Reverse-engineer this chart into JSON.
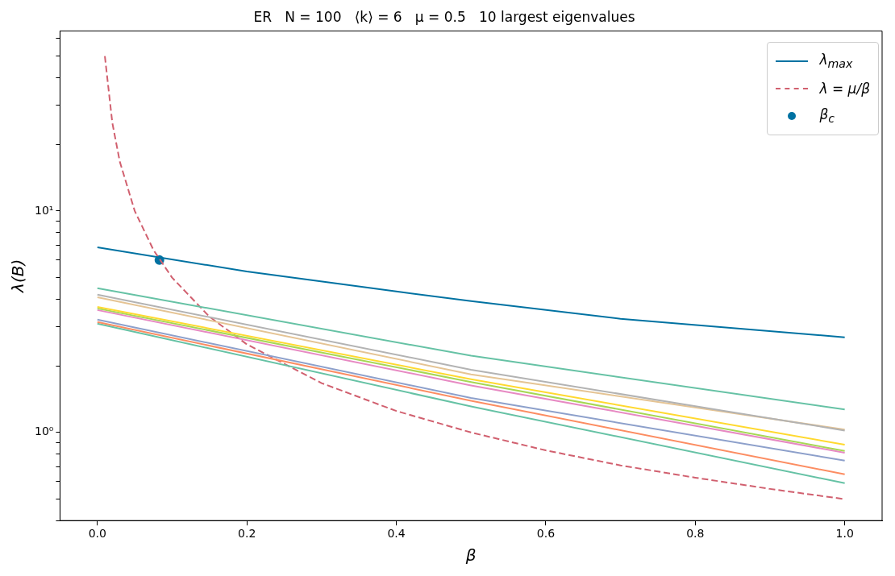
{
  "chart_data": {
    "type": "line",
    "title": "ER   N = 100   ⟨k⟩ = 6   μ = 0.5   10 largest eigenvalues",
    "xlabel": "β",
    "ylabel": "λ(B)",
    "log": "y",
    "grid": false,
    "legend": "top right",
    "xlim": [
      -0.05,
      1.05
    ],
    "xticks": [
      {
        "value": 0,
        "label": "0.0"
      },
      {
        "value": 0.2,
        "label": "0.2"
      },
      {
        "value": 0.4,
        "label": "0.4"
      },
      {
        "value": 0.6,
        "label": "0.6"
      },
      {
        "value": 0.8,
        "label": "0.8"
      },
      {
        "value": 1,
        "label": "1.0"
      }
    ],
    "ylim": [
      0.4,
      65
    ],
    "yticks": [
      {
        "value": 0.4,
        "label": null
      },
      {
        "value": 0.5,
        "label": null
      },
      {
        "value": 0.6,
        "label": null
      },
      {
        "value": 0.7,
        "label": null
      },
      {
        "value": 0.8,
        "label": null
      },
      {
        "value": 0.9,
        "label": null
      },
      {
        "value": 1,
        "label": "10⁰"
      },
      {
        "value": 2,
        "label": null
      },
      {
        "value": 3,
        "label": null
      },
      {
        "value": 4,
        "label": null
      },
      {
        "value": 5,
        "label": null
      },
      {
        "value": 6,
        "label": null
      },
      {
        "value": 7,
        "label": null
      },
      {
        "value": 8,
        "label": null
      },
      {
        "value": 9,
        "label": null
      },
      {
        "value": 10,
        "label": "10¹"
      },
      {
        "value": 20,
        "label": null
      },
      {
        "value": 30,
        "label": null
      },
      {
        "value": 40,
        "label": null
      },
      {
        "value": 50,
        "label": null
      },
      {
        "value": 60,
        "label": null
      }
    ],
    "series": [
      {
        "color": "#66c2a5",
        "x": [
          0,
          0.5,
          1
        ],
        "values": [
          4.48,
          2.22,
          1.27
        ]
      },
      {
        "color": "#b3b3b3",
        "x": [
          0,
          0.5,
          1
        ],
        "values": [
          4.19,
          1.92,
          1.02
        ]
      },
      {
        "color": "#e5c494",
        "x": [
          0,
          0.5,
          1
        ],
        "values": [
          4.08,
          1.83,
          1.03
        ]
      },
      {
        "color": "#ffd92f",
        "x": [
          0,
          0.5,
          1
        ],
        "values": [
          3.69,
          1.74,
          0.88
        ]
      },
      {
        "color": "#a6d854",
        "x": [
          0,
          0.5,
          1
        ],
        "values": [
          3.63,
          1.69,
          0.825
        ]
      },
      {
        "color": "#e78ac3",
        "x": [
          0,
          0.5,
          1
        ],
        "values": [
          3.57,
          1.63,
          0.81
        ]
      },
      {
        "color": "#8da0cb",
        "x": [
          0,
          0.5,
          1
        ],
        "values": [
          3.23,
          1.43,
          0.746
        ]
      },
      {
        "color": "#fc8d62",
        "x": [
          0,
          0.5,
          1
        ],
        "values": [
          3.15,
          1.39,
          0.647
        ]
      },
      {
        "color": "#66c2a5",
        "x": [
          0,
          0.5,
          1
        ],
        "values": [
          3.1,
          1.31,
          0.59
        ]
      },
      {
        "name": "λ$_{max}$",
        "color": "#0072a2",
        "x": [
          0,
          0.2,
          0.4,
          0.5,
          0.7,
          1
        ],
        "values": [
          6.85,
          5.33,
          4.33,
          3.92,
          3.26,
          2.69
        ]
      },
      {
        "name": "λ = μ/β",
        "color": "#d1606f",
        "line_style": "dashed",
        "x": [
          0.01,
          0.02,
          0.03,
          0.05,
          0.075,
          0.1,
          0.15,
          0.2,
          0.3,
          0.4,
          0.5,
          0.6,
          0.7,
          0.8,
          0.9,
          1
        ],
        "values": [
          50,
          25,
          16.7,
          10,
          6.67,
          5,
          3.33,
          2.5,
          1.67,
          1.25,
          1,
          0.83,
          0.71,
          0.625,
          0.556,
          0.5
        ]
      },
      {
        "name": "β$_{c}$",
        "type": "scatter",
        "marker": "circle",
        "color": "#0072a2",
        "x": [
          0.083
        ],
        "values": [
          6.0
        ]
      }
    ]
  }
}
